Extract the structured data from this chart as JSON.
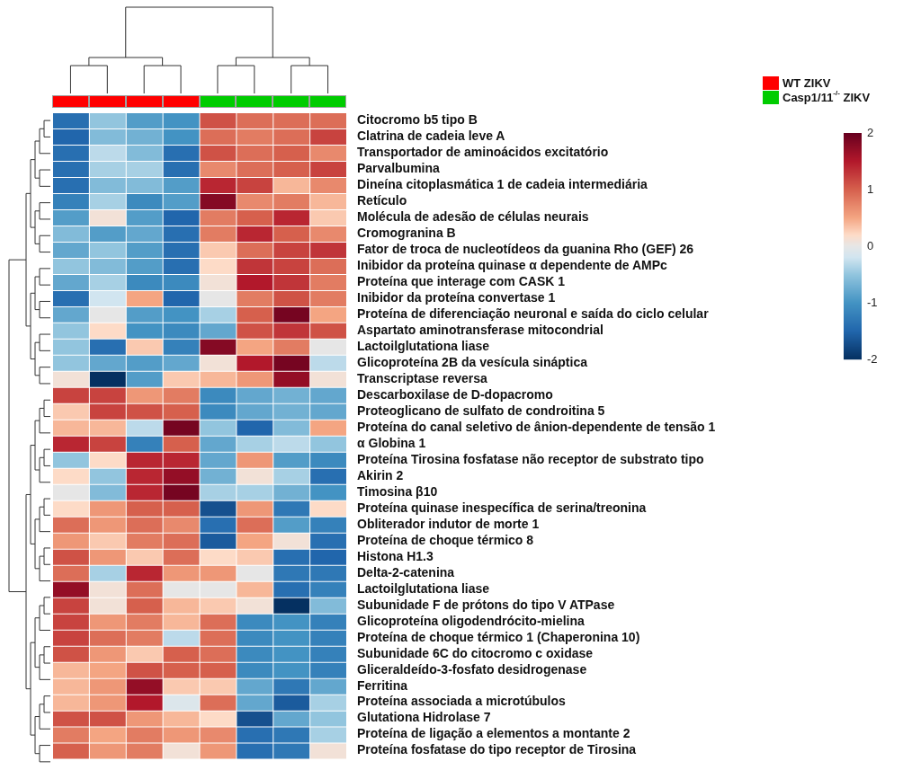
{
  "chart_data": {
    "type": "heatmap",
    "categories": [
      null,
      null,
      null,
      null,
      null,
      null,
      null,
      null
    ],
    "y_categories": [
      "Citocromo b5 tipo B",
      "Clatrina de cadeia leve A",
      "Transportador de aminoácidos excitatório",
      "Parvalbumina",
      "Dineína citoplasmática 1 de cadeia intermediária",
      "Retículo",
      "Molécula de adesão de células neurais",
      "Cromogranina B",
      "Fator de troca de nucleotídeos da guanina Rho (GEF) 26",
      "Inibidor da proteína quinase α dependente de AMPc",
      "Proteína que interage com CASK 1",
      "Inibidor da proteína convertase 1",
      "Proteína de diferenciação neuronal e saída do ciclo celular",
      "Aspartato aminotransferase mitocondrial",
      "Lactoilglutationa liase",
      "Glicoproteína 2B da vesícula sináptica",
      "Transcriptase reversa",
      "Descarboxilase de D-dopacromo",
      "Proteoglicano de sulfato de condroitina 5",
      "Proteína do canal seletivo de ânion-dependente de tensão 1",
      "α Globina 1",
      "Proteína Tirosina fosfatase não receptor de substrato tipo",
      "Akirin 2",
      "Timosina β10",
      "Proteína quinase inespecífica de serina/treonina",
      "Obliterador indutor de morte 1",
      "Proteína de choque térmico 8",
      "Histona H1.3",
      "Delta-2-catenina",
      "Lactoilglutationa liase",
      "Subunidade F de prótons do tipo V ATPase",
      "Glicoproteína oligodendrócito-mielina",
      "Proteína de choque térmico 1 (Chaperonina 10)",
      "Subunidade 6C do citocromo c oxidase",
      "Gliceraldeído-3-fosfato desidrogenase",
      "Ferritina",
      "Proteína associada a microtúbulos",
      "Glutationa Hidrolase 7",
      "Proteína de ligação a elementos a montante 2",
      "Proteína fosfatase do tipo receptor de Tirosina"
    ],
    "cells": [
      [
        -1.4,
        -0.5,
        -0.9,
        -1.0,
        1.1,
        0.9,
        0.9,
        0.9
      ],
      [
        -1.5,
        -0.6,
        -0.7,
        -1.0,
        0.9,
        0.8,
        0.9,
        1.2
      ],
      [
        -1.4,
        -0.3,
        -0.6,
        -1.4,
        1.1,
        0.9,
        1.0,
        0.7
      ],
      [
        -1.4,
        -0.4,
        -0.4,
        -1.4,
        0.7,
        0.9,
        1.0,
        1.2
      ],
      [
        -1.4,
        -0.6,
        -0.6,
        -0.9,
        1.4,
        1.2,
        0.4,
        0.7
      ],
      [
        -1.2,
        -0.4,
        -1.1,
        -0.9,
        1.8,
        0.7,
        0.8,
        0.4
      ],
      [
        -0.9,
        0.1,
        -0.9,
        -1.5,
        0.8,
        1.0,
        1.4,
        0.3
      ],
      [
        -0.6,
        -0.9,
        -0.8,
        -1.4,
        0.8,
        1.4,
        1.0,
        0.7
      ],
      [
        -0.8,
        -0.5,
        -0.9,
        -1.4,
        0.3,
        0.9,
        1.2,
        1.3
      ],
      [
        -0.5,
        -0.6,
        -0.9,
        -1.4,
        0.2,
        1.3,
        1.2,
        0.9
      ],
      [
        -0.8,
        -0.4,
        -1.1,
        -1.1,
        0.1,
        1.5,
        1.3,
        0.8
      ],
      [
        -1.4,
        -0.2,
        0.5,
        -1.5,
        0.0,
        0.8,
        1.1,
        0.8
      ],
      [
        -0.8,
        0.0,
        -0.9,
        -1.0,
        -0.4,
        1.0,
        1.9,
        0.5
      ],
      [
        -0.5,
        0.2,
        -1.0,
        -1.1,
        -0.8,
        1.1,
        1.3,
        1.1
      ],
      [
        -0.5,
        -1.4,
        0.3,
        -1.2,
        1.8,
        0.5,
        0.8,
        0.0
      ],
      [
        -0.5,
        -0.8,
        -0.9,
        -0.8,
        0.1,
        1.5,
        1.9,
        -0.3
      ],
      [
        0.1,
        -2.0,
        -0.9,
        0.3,
        0.4,
        0.6,
        1.7,
        0.1
      ],
      [
        1.2,
        1.2,
        0.6,
        0.8,
        -1.1,
        -0.8,
        -0.7,
        -0.8
      ],
      [
        0.3,
        1.2,
        1.1,
        1.0,
        -1.1,
        -0.8,
        -0.7,
        -0.8
      ],
      [
        0.4,
        0.4,
        -0.3,
        1.9,
        -0.5,
        -1.5,
        -0.6,
        0.5
      ],
      [
        1.4,
        1.2,
        -1.2,
        1.0,
        -0.8,
        -0.4,
        -0.3,
        -0.5
      ],
      [
        -0.5,
        0.2,
        1.4,
        1.4,
        -0.8,
        0.6,
        -0.9,
        -1.1
      ],
      [
        0.2,
        -0.5,
        1.4,
        1.7,
        -0.7,
        0.1,
        -0.4,
        -1.4
      ],
      [
        0.0,
        -0.6,
        1.4,
        1.9,
        -0.4,
        -0.4,
        -0.7,
        -1.0
      ],
      [
        0.2,
        0.6,
        1.0,
        1.0,
        -1.7,
        0.6,
        -1.3,
        0.2
      ],
      [
        0.9,
        0.6,
        0.9,
        0.7,
        -1.4,
        0.9,
        -0.9,
        -1.2
      ],
      [
        0.6,
        0.3,
        0.8,
        0.9,
        -1.6,
        0.5,
        0.1,
        -1.4
      ],
      [
        1.1,
        0.6,
        0.3,
        0.9,
        0.2,
        0.3,
        -1.4,
        -1.5
      ],
      [
        0.9,
        -0.4,
        1.4,
        0.6,
        0.6,
        0.0,
        -1.3,
        -1.3
      ],
      [
        1.7,
        0.1,
        0.9,
        0.0,
        0.0,
        0.4,
        -1.4,
        -1.2
      ],
      [
        1.2,
        0.1,
        1.0,
        0.4,
        0.3,
        0.1,
        -2.0,
        -0.6
      ],
      [
        1.2,
        0.6,
        0.8,
        0.4,
        0.9,
        -1.1,
        -1.0,
        -1.2
      ],
      [
        1.2,
        0.9,
        0.8,
        -0.3,
        0.9,
        -1.1,
        -1.0,
        -1.2
      ],
      [
        1.1,
        0.6,
        0.3,
        1.0,
        0.9,
        -1.1,
        -1.0,
        -1.2
      ],
      [
        0.4,
        0.5,
        1.1,
        1.0,
        1.0,
        -1.1,
        -1.0,
        -1.2
      ],
      [
        0.4,
        0.6,
        1.7,
        0.3,
        0.3,
        -0.8,
        -1.3,
        -0.8
      ],
      [
        0.4,
        0.6,
        1.5,
        -0.1,
        0.9,
        -0.8,
        -1.6,
        -0.4
      ],
      [
        1.1,
        1.1,
        0.6,
        0.4,
        0.2,
        -1.7,
        -0.8,
        -0.5
      ],
      [
        0.8,
        0.5,
        0.8,
        0.6,
        0.7,
        -1.4,
        -1.3,
        -0.4
      ],
      [
        1.0,
        0.6,
        0.8,
        0.1,
        0.6,
        -1.4,
        -1.3,
        0.1
      ]
    ],
    "annotations": [
      "WT ZIKV",
      "Casp1/11$^{-/-}$ ZIKV"
    ],
    "clim": [
      -2,
      2
    ],
    "cticks": [
      -2,
      -1,
      0,
      1,
      2
    ]
  }
}
